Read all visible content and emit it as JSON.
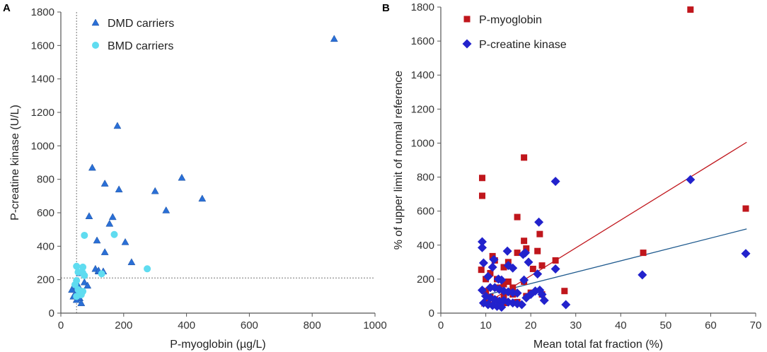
{
  "chart_data": [
    {
      "type": "scatter",
      "panel_letter": "A",
      "xlabel": "P-myoglobin (µg/L)",
      "ylabel": "P-creatine kinase (U/L)",
      "xlim": [
        0,
        1000
      ],
      "ylim": [
        0,
        1800
      ],
      "xticks": [
        0,
        200,
        400,
        600,
        800,
        1000
      ],
      "yticks": [
        0,
        200,
        400,
        600,
        800,
        1000,
        1200,
        1400,
        1600,
        1800
      ],
      "reference_lines": [
        {
          "axis": "x",
          "value": 50
        },
        {
          "axis": "y",
          "value": 210
        }
      ],
      "legend_position": "top-left",
      "series": [
        {
          "name": "DMD carriers",
          "marker": "triangle",
          "color": "#2a6fd6",
          "points": [
            [
              870,
              1640
            ],
            [
              180,
              1120
            ],
            [
              100,
              870
            ],
            [
              385,
              810
            ],
            [
              140,
              775
            ],
            [
              300,
              730
            ],
            [
              185,
              740
            ],
            [
              450,
              685
            ],
            [
              335,
              615
            ],
            [
              165,
              575
            ],
            [
              90,
              580
            ],
            [
              155,
              535
            ],
            [
              115,
              435
            ],
            [
              205,
              425
            ],
            [
              140,
              365
            ],
            [
              225,
              305
            ],
            [
              60,
              240
            ],
            [
              110,
              265
            ],
            [
              120,
              250
            ],
            [
              135,
              250
            ],
            [
              120,
              255
            ],
            [
              75,
              185
            ],
            [
              85,
              165
            ],
            [
              55,
              165
            ],
            [
              45,
              150
            ],
            [
              65,
              130
            ],
            [
              50,
              125
            ],
            [
              55,
              110
            ],
            [
              40,
              100
            ],
            [
              60,
              90
            ],
            [
              50,
              80
            ],
            [
              65,
              60
            ],
            [
              45,
              175
            ],
            [
              35,
              140
            ]
          ]
        },
        {
          "name": "BMD carriers",
          "marker": "circle",
          "color": "#5fdcf0",
          "points": [
            [
              75,
              465
            ],
            [
              170,
              470
            ],
            [
              50,
              280
            ],
            [
              70,
              275
            ],
            [
              275,
              265
            ],
            [
              55,
              245
            ],
            [
              70,
              240
            ],
            [
              50,
              195
            ],
            [
              45,
              170
            ],
            [
              130,
              235
            ],
            [
              75,
              225
            ],
            [
              55,
              140
            ],
            [
              70,
              130
            ],
            [
              65,
              110
            ],
            [
              50,
              100
            ]
          ]
        }
      ]
    },
    {
      "type": "scatter",
      "panel_letter": "B",
      "xlabel": "Mean total fat fraction (%)",
      "ylabel": "% of upper limit of normal reference",
      "xlim": [
        0,
        70
      ],
      "ylim": [
        0,
        1800
      ],
      "xticks": [
        0,
        10,
        20,
        30,
        40,
        50,
        60,
        70
      ],
      "yticks": [
        0,
        200,
        400,
        600,
        800,
        1000,
        1200,
        1400,
        1600,
        1800
      ],
      "legend_position": "top-left",
      "series": [
        {
          "name": "P-myoglobin",
          "marker": "square",
          "color": "#c0161c",
          "trendline": {
            "x": [
              9,
              68
            ],
            "y": [
              40,
              1005
            ],
            "color": "#c0161c"
          },
          "points": [
            [
              55.5,
              1785
            ],
            [
              18.5,
              915
            ],
            [
              9.2,
              795
            ],
            [
              9.2,
              690
            ],
            [
              67.8,
              615
            ],
            [
              17,
              565
            ],
            [
              22,
              465
            ],
            [
              18.5,
              425
            ],
            [
              19,
              380
            ],
            [
              17,
              355
            ],
            [
              21.5,
              365
            ],
            [
              45,
              355
            ],
            [
              25.5,
              310
            ],
            [
              11.5,
              335
            ],
            [
              15,
              300
            ],
            [
              20.5,
              260
            ],
            [
              12,
              310
            ],
            [
              14,
              270
            ],
            [
              22.5,
              280
            ],
            [
              10,
              200
            ],
            [
              11,
              235
            ],
            [
              9,
              255
            ],
            [
              12.5,
              200
            ],
            [
              15,
              185
            ],
            [
              14,
              170
            ],
            [
              18.5,
              185
            ],
            [
              16,
              150
            ],
            [
              13,
              150
            ],
            [
              27.5,
              130
            ],
            [
              10,
              130
            ],
            [
              16,
              110
            ],
            [
              14,
              100
            ],
            [
              11,
              95
            ],
            [
              19,
              100
            ],
            [
              12,
              80
            ],
            [
              17,
              65
            ],
            [
              14.5,
              60
            ],
            [
              10.5,
              60
            ],
            [
              13,
              45
            ],
            [
              22.5,
              110
            ],
            [
              20,
              120
            ]
          ]
        },
        {
          "name": "P-creatine kinase",
          "marker": "diamond",
          "color": "#2222cc",
          "trendline": {
            "x": [
              9,
              68
            ],
            "y": [
              100,
              495
            ],
            "color": "#1f5a8e"
          },
          "points": [
            [
              55.5,
              785
            ],
            [
              25.5,
              775
            ],
            [
              21.8,
              535
            ],
            [
              9.2,
              420
            ],
            [
              9.2,
              385
            ],
            [
              18.8,
              355
            ],
            [
              14.8,
              365
            ],
            [
              18.3,
              345
            ],
            [
              67.8,
              350
            ],
            [
              11.8,
              315
            ],
            [
              9.5,
              295
            ],
            [
              11.5,
              270
            ],
            [
              19.5,
              300
            ],
            [
              25.5,
              260
            ],
            [
              16,
              265
            ],
            [
              15,
              280
            ],
            [
              21.5,
              230
            ],
            [
              44.8,
              225
            ],
            [
              10.5,
              215
            ],
            [
              12.8,
              200
            ],
            [
              13.5,
              195
            ],
            [
              18.5,
              195
            ],
            [
              9.2,
              135
            ],
            [
              11,
              150
            ],
            [
              12,
              150
            ],
            [
              13,
              140
            ],
            [
              14,
              130
            ],
            [
              15,
              125
            ],
            [
              16,
              120
            ],
            [
              17,
              118
            ],
            [
              21,
              130
            ],
            [
              22,
              135
            ],
            [
              22.5,
              110
            ],
            [
              23,
              75
            ],
            [
              10,
              100
            ],
            [
              11,
              90
            ],
            [
              12,
              80
            ],
            [
              13,
              70
            ],
            [
              14,
              75
            ],
            [
              15,
              65
            ],
            [
              16,
              60
            ],
            [
              17,
              55
            ],
            [
              18,
              50
            ],
            [
              10.5,
              50
            ],
            [
              11.5,
              45
            ],
            [
              12.5,
              40
            ],
            [
              13.5,
              35
            ],
            [
              9.5,
              60
            ],
            [
              27.8,
              50
            ],
            [
              20,
              110
            ],
            [
              19,
              90
            ]
          ]
        }
      ]
    }
  ]
}
